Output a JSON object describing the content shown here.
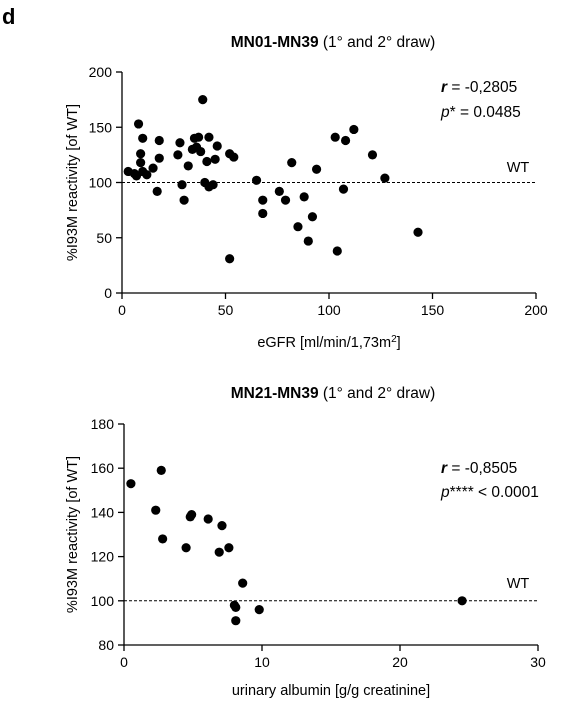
{
  "panel_label": "d",
  "chart_data": [
    {
      "type": "scatter",
      "title_bold": "MN01-MN39",
      "title_rest": " (1° and 2° draw)",
      "xlabel": "eGFR [ml/min/1,73m",
      "xlabel_sup": "2",
      "xlabel_end": "]",
      "ylabel": "%I93M reactivity [of WT]",
      "xlim": [
        0,
        200
      ],
      "ylim": [
        0,
        200
      ],
      "xticks": [
        "0",
        "50",
        "100",
        "150",
        "200"
      ],
      "yticks": [
        "0",
        "50",
        "100",
        "150",
        "200"
      ],
      "reference_line": {
        "y": 100,
        "label": "WT"
      },
      "stat_r_symbol": "r",
      "stat_r_value": " = -0,2805",
      "stat_p_symbol": "p",
      "stat_p_value": "* = 0.0485",
      "grid": false,
      "points": [
        {
          "x": 3,
          "y": 110
        },
        {
          "x": 6,
          "y": 108
        },
        {
          "x": 7,
          "y": 106
        },
        {
          "x": 8,
          "y": 153
        },
        {
          "x": 9,
          "y": 118
        },
        {
          "x": 9,
          "y": 126
        },
        {
          "x": 10,
          "y": 110
        },
        {
          "x": 10,
          "y": 140
        },
        {
          "x": 12,
          "y": 107
        },
        {
          "x": 15,
          "y": 113
        },
        {
          "x": 17,
          "y": 92
        },
        {
          "x": 18,
          "y": 122
        },
        {
          "x": 18,
          "y": 138
        },
        {
          "x": 27,
          "y": 125
        },
        {
          "x": 28,
          "y": 136
        },
        {
          "x": 29,
          "y": 98
        },
        {
          "x": 30,
          "y": 84
        },
        {
          "x": 32,
          "y": 115
        },
        {
          "x": 34,
          "y": 130
        },
        {
          "x": 35,
          "y": 140
        },
        {
          "x": 36,
          "y": 132
        },
        {
          "x": 37,
          "y": 141
        },
        {
          "x": 38,
          "y": 128
        },
        {
          "x": 39,
          "y": 175
        },
        {
          "x": 40,
          "y": 100
        },
        {
          "x": 41,
          "y": 119
        },
        {
          "x": 42,
          "y": 96
        },
        {
          "x": 42,
          "y": 141
        },
        {
          "x": 44,
          "y": 98
        },
        {
          "x": 45,
          "y": 121
        },
        {
          "x": 46,
          "y": 133
        },
        {
          "x": 52,
          "y": 126
        },
        {
          "x": 52,
          "y": 31
        },
        {
          "x": 54,
          "y": 123
        },
        {
          "x": 65,
          "y": 102
        },
        {
          "x": 68,
          "y": 84
        },
        {
          "x": 68,
          "y": 72
        },
        {
          "x": 76,
          "y": 92
        },
        {
          "x": 79,
          "y": 84
        },
        {
          "x": 82,
          "y": 118
        },
        {
          "x": 85,
          "y": 60
        },
        {
          "x": 88,
          "y": 87
        },
        {
          "x": 90,
          "y": 47
        },
        {
          "x": 92,
          "y": 69
        },
        {
          "x": 94,
          "y": 112
        },
        {
          "x": 103,
          "y": 141
        },
        {
          "x": 104,
          "y": 38
        },
        {
          "x": 107,
          "y": 94
        },
        {
          "x": 108,
          "y": 138
        },
        {
          "x": 112,
          "y": 148
        },
        {
          "x": 121,
          "y": 125
        },
        {
          "x": 127,
          "y": 104
        },
        {
          "x": 143,
          "y": 55
        }
      ]
    },
    {
      "type": "scatter",
      "title_bold": "MN21-MN39",
      "title_rest": " (1° and 2° draw)",
      "xlabel": "urinary albumin [g/g creatinine]",
      "ylabel": "%I93M reactivity [of WT]",
      "xlim": [
        0,
        30
      ],
      "ylim": [
        80,
        180
      ],
      "xticks": [
        "0",
        "10",
        "20",
        "30"
      ],
      "yticks": [
        "80",
        "100",
        "120",
        "140",
        "160",
        "180"
      ],
      "reference_line": {
        "y": 100,
        "label": "WT"
      },
      "stat_r_symbol": "r",
      "stat_r_value": " = -0,8505",
      "stat_p_symbol": "p",
      "stat_p_value": "**** < 0.0001",
      "grid": false,
      "points": [
        {
          "x": 0.5,
          "y": 153
        },
        {
          "x": 2.3,
          "y": 141
        },
        {
          "x": 2.7,
          "y": 159
        },
        {
          "x": 2.8,
          "y": 128
        },
        {
          "x": 4.5,
          "y": 124
        },
        {
          "x": 4.8,
          "y": 138
        },
        {
          "x": 4.9,
          "y": 139
        },
        {
          "x": 6.1,
          "y": 137
        },
        {
          "x": 6.9,
          "y": 122
        },
        {
          "x": 7.1,
          "y": 134
        },
        {
          "x": 7.6,
          "y": 124
        },
        {
          "x": 8.0,
          "y": 98
        },
        {
          "x": 8.1,
          "y": 97
        },
        {
          "x": 8.1,
          "y": 91
        },
        {
          "x": 8.6,
          "y": 108
        },
        {
          "x": 9.8,
          "y": 96
        },
        {
          "x": 24.5,
          "y": 100
        }
      ]
    }
  ]
}
